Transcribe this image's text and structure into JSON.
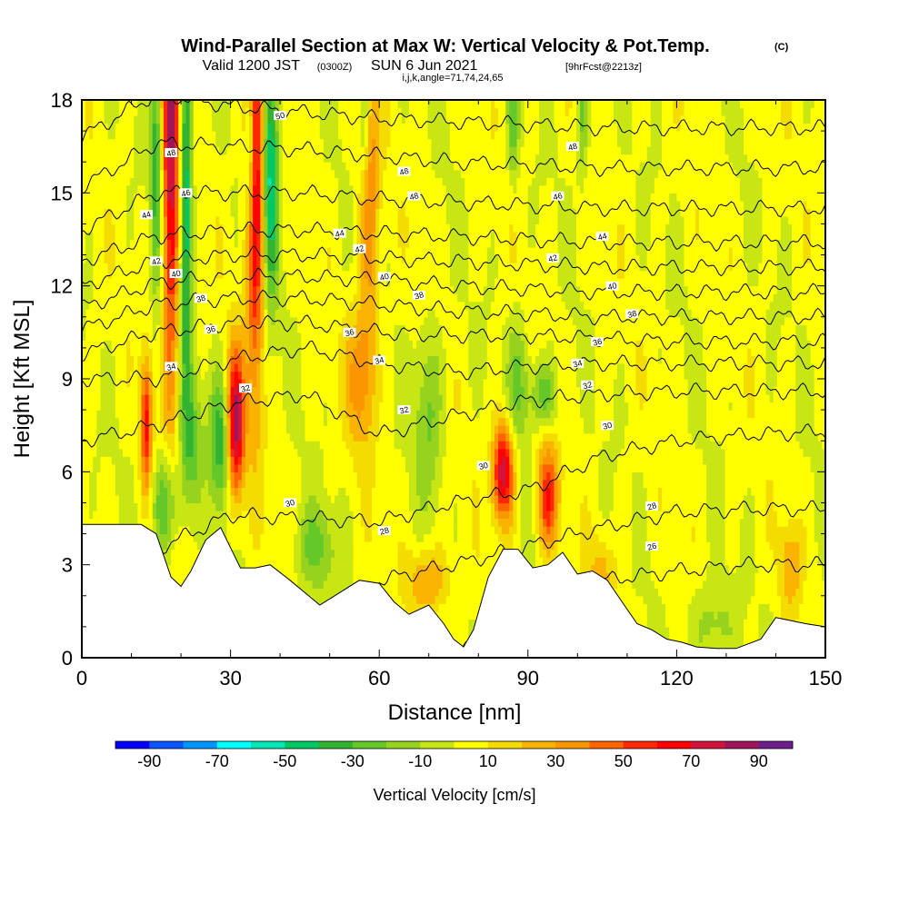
{
  "chart_data": {
    "type": "heatmap",
    "title": "Wind-Parallel Section at Max W: Vertical Velocity & Pot.Temp.",
    "title_mark": "(C)",
    "subtitle_main": "Valid 1200 JST",
    "subtitle_utc": "(0300Z)",
    "subtitle_date": "SUN 6 Jun 2021",
    "subtitle_fcst": "[9hrFcst@2213z]",
    "subtitle_params": "i,j,k,angle=71,74,24,65",
    "xlabel": "Distance [nm]",
    "ylabel": "Height [Kft MSL]",
    "xlim": [
      0,
      150
    ],
    "ylim": [
      0,
      18
    ],
    "x_ticks": [
      0,
      30,
      60,
      90,
      120,
      150
    ],
    "y_ticks": [
      0,
      3,
      6,
      9,
      12,
      15,
      18
    ],
    "colorbar": {
      "label": "Vertical Velocity [cm/s]",
      "range": [
        -100,
        100
      ],
      "tick_values": [
        -90,
        -70,
        -50,
        -30,
        -10,
        10,
        30,
        50,
        70,
        90
      ],
      "tick_labels": [
        "-90",
        "-70",
        "-50",
        "-30",
        "-10",
        "10",
        "30",
        "50",
        "70",
        "90"
      ],
      "colors": [
        "#0000ff",
        "#0a55ff",
        "#0096ff",
        "#00ffff",
        "#00e6b4",
        "#00c864",
        "#32b432",
        "#64c828",
        "#96d21e",
        "#c8e614",
        "#ffff00",
        "#f5dc00",
        "#fab400",
        "#fa9600",
        "#ff6400",
        "#ff2800",
        "#ff0000",
        "#d2143c",
        "#a0145a",
        "#6e1e8c"
      ]
    },
    "terrain": [
      [
        0,
        4.3
      ],
      [
        12,
        4.3
      ],
      [
        15,
        4.0
      ],
      [
        18,
        2.6
      ],
      [
        20,
        2.3
      ],
      [
        22,
        2.8
      ],
      [
        25,
        3.8
      ],
      [
        28,
        4.2
      ],
      [
        32,
        2.9
      ],
      [
        35,
        2.9
      ],
      [
        38,
        3.0
      ],
      [
        42,
        2.5
      ],
      [
        45,
        2.1
      ],
      [
        48,
        1.7
      ],
      [
        52,
        2.1
      ],
      [
        56,
        2.5
      ],
      [
        60,
        2.4
      ],
      [
        63,
        1.8
      ],
      [
        66,
        1.4
      ],
      [
        70,
        1.7
      ],
      [
        73,
        1.1
      ],
      [
        75,
        0.6
      ],
      [
        77,
        0.35
      ],
      [
        79,
        0.9
      ],
      [
        82,
        2.6
      ],
      [
        85,
        3.5
      ],
      [
        88,
        3.5
      ],
      [
        91,
        2.9
      ],
      [
        94,
        3.0
      ],
      [
        97,
        3.4
      ],
      [
        100,
        2.7
      ],
      [
        103,
        2.8
      ],
      [
        106,
        2.5
      ],
      [
        109,
        1.8
      ],
      [
        112,
        1.1
      ],
      [
        115,
        0.9
      ],
      [
        118,
        0.6
      ],
      [
        121,
        0.5
      ],
      [
        124,
        0.35
      ],
      [
        128,
        0.3
      ],
      [
        132,
        0.3
      ],
      [
        137,
        0.6
      ],
      [
        140,
        1.3
      ],
      [
        146,
        1.1
      ],
      [
        150,
        1.0
      ]
    ],
    "updraft_cores": [
      {
        "x": 18,
        "y": 17,
        "w": 80,
        "sx": 1.2,
        "sy": 6
      },
      {
        "x": 35,
        "y": 16,
        "w": 80,
        "sx": 1.3,
        "sy": 5
      },
      {
        "x": 31,
        "y": 7.5,
        "w": 85,
        "sx": 1.3,
        "sy": 1.7
      },
      {
        "x": 13,
        "y": 7.5,
        "w": 60,
        "sx": 0.8,
        "sy": 1.5
      },
      {
        "x": 85,
        "y": 6,
        "w": 80,
        "sx": 1.5,
        "sy": 1.1
      },
      {
        "x": 94,
        "y": 5.2,
        "w": 55,
        "sx": 1.5,
        "sy": 1.2
      },
      {
        "x": 58,
        "y": 15,
        "w": 35,
        "sx": 1.5,
        "sy": 4
      },
      {
        "x": 56,
        "y": 9,
        "w": 30,
        "sx": 2,
        "sy": 1.5
      },
      {
        "x": 70,
        "y": 2.5,
        "w": 30,
        "sx": 3,
        "sy": 0.8
      },
      {
        "x": 143,
        "y": 3,
        "w": 25,
        "sx": 1.5,
        "sy": 1
      },
      {
        "x": 105,
        "y": 2.8,
        "w": 20,
        "sx": 2,
        "sy": 0.8
      }
    ],
    "downdraft_cores": [
      {
        "x": 21,
        "y": 14.5,
        "w": -55,
        "sx": 0.9,
        "sy": 4
      },
      {
        "x": 15,
        "y": 16,
        "w": -40,
        "sx": 0.8,
        "sy": 3
      },
      {
        "x": 38,
        "y": 16,
        "w": -60,
        "sx": 1.2,
        "sy": 3
      },
      {
        "x": 34,
        "y": 16.5,
        "w": -45,
        "sx": 0.7,
        "sy": 2
      },
      {
        "x": 28,
        "y": 7,
        "w": -40,
        "sx": 1.6,
        "sy": 1.6
      },
      {
        "x": 17,
        "y": 5,
        "w": -35,
        "sx": 2,
        "sy": 1.2
      },
      {
        "x": 22,
        "y": 7,
        "w": -30,
        "sx": 1.5,
        "sy": 1.5
      },
      {
        "x": 93,
        "y": 8.5,
        "w": -30,
        "sx": 2,
        "sy": 0.8
      },
      {
        "x": 88,
        "y": 9,
        "w": -25,
        "sx": 1.5,
        "sy": 1.5
      },
      {
        "x": 70,
        "y": 8,
        "w": -25,
        "sx": 2,
        "sy": 2
      },
      {
        "x": 47,
        "y": 3.5,
        "w": -25,
        "sx": 3,
        "sy": 1
      },
      {
        "x": 127,
        "y": 1,
        "w": -20,
        "sx": 3,
        "sy": 1
      },
      {
        "x": 57,
        "y": 17.5,
        "w": -30,
        "sx": 0.8,
        "sy": 1.5
      },
      {
        "x": 87,
        "y": 17.5,
        "w": -30,
        "sx": 0.8,
        "sy": 1.5
      },
      {
        "x": 101,
        "y": 17.5,
        "w": -25,
        "sx": 0.8,
        "sy": 1.5
      }
    ],
    "theta_levels": [
      26,
      28,
      30,
      32,
      34,
      36,
      38,
      40,
      42,
      44,
      46,
      48,
      50
    ],
    "theta_heights": [
      [
        0.0,
        0.0,
        0.0,
        0.0,
        0.0,
        0.0,
        2.0,
        2.5,
        2.8,
        3.0,
        3.0
      ],
      [
        0.0,
        0.0,
        0.0,
        0.0,
        2.5,
        3.0,
        3.6,
        4.2,
        4.7,
        4.8,
        4.8
      ],
      [
        0.0,
        3.5,
        4.6,
        4.5,
        4.4,
        5.0,
        5.4,
        6.5,
        7.0,
        7.2,
        7.3
      ],
      [
        7.0,
        7.5,
        8.2,
        8.5,
        7.2,
        7.8,
        8.3,
        8.5,
        8.6,
        8.6,
        8.6
      ],
      [
        9.0,
        9.0,
        9.6,
        10.0,
        9.5,
        9.2,
        9.4,
        9.5,
        9.5,
        9.5,
        9.5
      ],
      [
        9.8,
        10.5,
        10.8,
        10.8,
        10.5,
        10.4,
        10.4,
        10.3,
        10.2,
        10.2,
        10.2
      ],
      [
        10.6,
        11.4,
        11.6,
        11.6,
        11.4,
        11.2,
        11.1,
        11.0,
        11.0,
        11.0,
        11.0
      ],
      [
        11.3,
        12.1,
        12.3,
        12.3,
        12.2,
        12.0,
        11.9,
        11.8,
        11.8,
        11.8,
        11.8
      ],
      [
        12.0,
        12.8,
        13.0,
        13.0,
        12.9,
        12.8,
        12.7,
        12.6,
        12.6,
        12.6,
        12.6
      ],
      [
        12.8,
        13.6,
        13.8,
        13.8,
        13.7,
        13.6,
        13.5,
        13.4,
        13.4,
        13.4,
        13.4
      ],
      [
        13.8,
        15.0,
        15.0,
        15.0,
        14.8,
        14.7,
        14.6,
        14.5,
        14.5,
        14.5,
        14.5
      ],
      [
        15.2,
        16.6,
        16.5,
        16.4,
        16.2,
        16.0,
        15.9,
        15.8,
        15.8,
        15.8,
        15.8
      ],
      [
        16.8,
        18.2,
        17.8,
        17.6,
        17.4,
        17.3,
        17.2,
        17.1,
        17.1,
        17.1,
        17.1
      ]
    ],
    "contour_labels": [
      {
        "text": "50",
        "x": 40,
        "y": 17.5
      },
      {
        "text": "48",
        "x": 18,
        "y": 16.3
      },
      {
        "text": "46",
        "x": 21,
        "y": 15.0
      },
      {
        "text": "44",
        "x": 13,
        "y": 14.3
      },
      {
        "text": "42",
        "x": 15,
        "y": 12.8
      },
      {
        "text": "40",
        "x": 19,
        "y": 12.4
      },
      {
        "text": "38",
        "x": 24,
        "y": 11.6
      },
      {
        "text": "36",
        "x": 26,
        "y": 10.6
      },
      {
        "text": "34",
        "x": 18,
        "y": 9.4
      },
      {
        "text": "32",
        "x": 33,
        "y": 8.7
      },
      {
        "text": "30",
        "x": 42,
        "y": 5.0
      },
      {
        "text": "28",
        "x": 61,
        "y": 4.1
      },
      {
        "text": "48",
        "x": 65,
        "y": 15.7
      },
      {
        "text": "48",
        "x": 67,
        "y": 14.9
      },
      {
        "text": "44",
        "x": 52,
        "y": 13.7
      },
      {
        "text": "42",
        "x": 56,
        "y": 13.2
      },
      {
        "text": "40",
        "x": 61,
        "y": 12.3
      },
      {
        "text": "38",
        "x": 68,
        "y": 11.7
      },
      {
        "text": "36",
        "x": 54,
        "y": 10.5
      },
      {
        "text": "34",
        "x": 60,
        "y": 9.6
      },
      {
        "text": "32",
        "x": 65,
        "y": 8.0
      },
      {
        "text": "30",
        "x": 81,
        "y": 6.2
      },
      {
        "text": "48",
        "x": 99,
        "y": 16.5
      },
      {
        "text": "46",
        "x": 96,
        "y": 14.9
      },
      {
        "text": "44",
        "x": 105,
        "y": 13.6
      },
      {
        "text": "42",
        "x": 95,
        "y": 12.9
      },
      {
        "text": "40",
        "x": 107,
        "y": 12.0
      },
      {
        "text": "38",
        "x": 111,
        "y": 11.1
      },
      {
        "text": "36",
        "x": 104,
        "y": 10.2
      },
      {
        "text": "34",
        "x": 100,
        "y": 9.5
      },
      {
        "text": "32",
        "x": 102,
        "y": 8.8
      },
      {
        "text": "30",
        "x": 106,
        "y": 7.5
      },
      {
        "text": "28",
        "x": 115,
        "y": 4.9
      },
      {
        "text": "26",
        "x": 115,
        "y": 3.6
      }
    ]
  }
}
